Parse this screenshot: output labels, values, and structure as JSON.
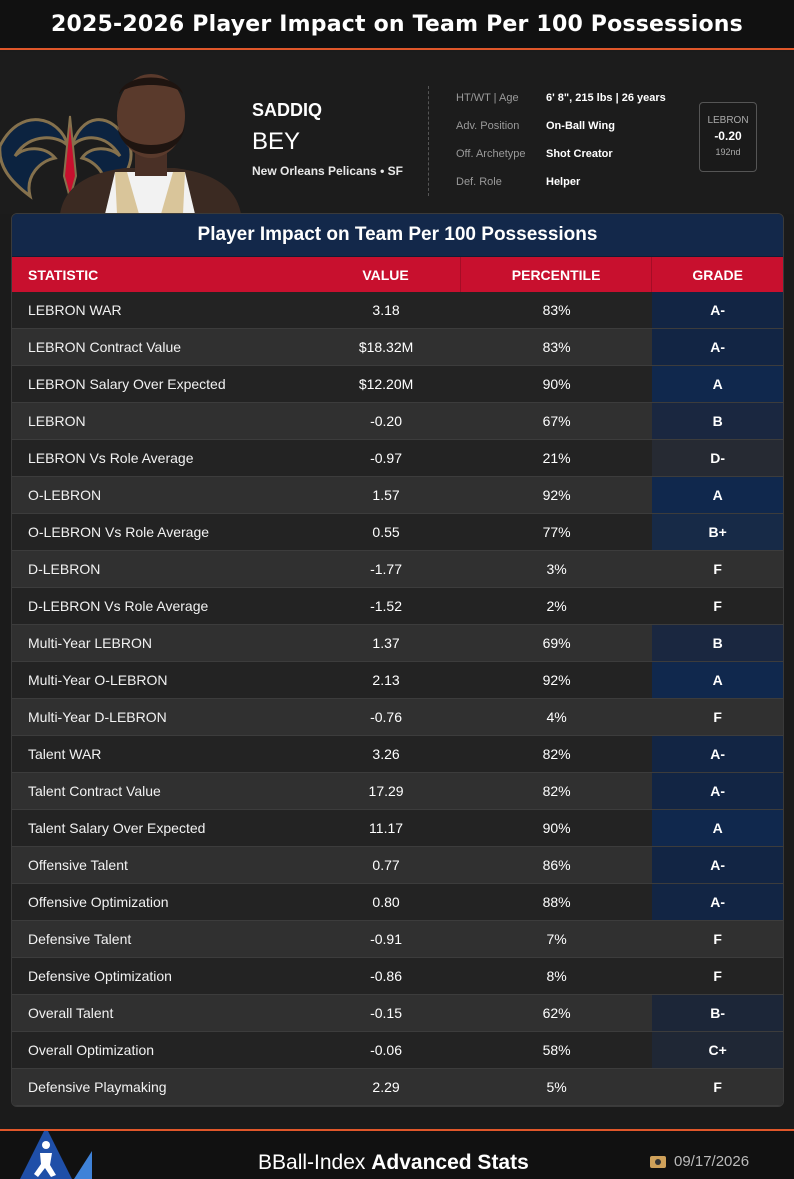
{
  "page_title": "2025-2026 Player Impact on Team Per 100 Possessions",
  "player": {
    "first_name": "SADDIQ",
    "last_name": "BEY",
    "team_position": "New Orleans Pelicans • SF"
  },
  "info": [
    {
      "label": "HT/WT | Age",
      "value": "6' 8\", 215 lbs | 26 years"
    },
    {
      "label": "Adv. Position",
      "value": "On-Ball Wing"
    },
    {
      "label": "Off. Archetype",
      "value": "Shot Creator"
    },
    {
      "label": "Def. Role",
      "value": "Helper"
    }
  ],
  "lebron_box": {
    "label": "LEBRON",
    "value": "-0.20",
    "rank": "192nd"
  },
  "table": {
    "title": "Player Impact on Team Per 100 Possessions",
    "headers": [
      "STATISTIC",
      "VALUE",
      "PERCENTILE",
      "GRADE"
    ],
    "rows": [
      {
        "stat": "LEBRON WAR",
        "value": "3.18",
        "percentile": "83%",
        "grade": "A-",
        "grade_color": "#122544"
      },
      {
        "stat": "LEBRON Contract Value",
        "value": "$18.32M",
        "percentile": "83%",
        "grade": "A-",
        "grade_color": "#122544"
      },
      {
        "stat": "LEBRON Salary Over Expected",
        "value": "$12.20M",
        "percentile": "90%",
        "grade": "A",
        "grade_color": "#10284d"
      },
      {
        "stat": "LEBRON",
        "value": "-0.20",
        "percentile": "67%",
        "grade": "B",
        "grade_color": "#1a2740"
      },
      {
        "stat": "LEBRON Vs Role Average",
        "value": "-0.97",
        "percentile": "21%",
        "grade": "D-",
        "grade_color": "#262a33"
      },
      {
        "stat": "O-LEBRON",
        "value": "1.57",
        "percentile": "92%",
        "grade": "A",
        "grade_color": "#10284d"
      },
      {
        "stat": "O-LEBRON Vs Role Average",
        "value": "0.55",
        "percentile": "77%",
        "grade": "B+",
        "grade_color": "#172a47"
      },
      {
        "stat": "D-LEBRON",
        "value": "-1.77",
        "percentile": "3%",
        "grade": "F",
        "grade_color": ""
      },
      {
        "stat": "D-LEBRON Vs Role Average",
        "value": "-1.52",
        "percentile": "2%",
        "grade": "F",
        "grade_color": ""
      },
      {
        "stat": "Multi-Year LEBRON",
        "value": "1.37",
        "percentile": "69%",
        "grade": "B",
        "grade_color": "#1a2740"
      },
      {
        "stat": "Multi-Year O-LEBRON",
        "value": "2.13",
        "percentile": "92%",
        "grade": "A",
        "grade_color": "#10284d"
      },
      {
        "stat": "Multi-Year D-LEBRON",
        "value": "-0.76",
        "percentile": "4%",
        "grade": "F",
        "grade_color": ""
      },
      {
        "stat": "Talent WAR",
        "value": "3.26",
        "percentile": "82%",
        "grade": "A-",
        "grade_color": "#122544"
      },
      {
        "stat": "Talent Contract Value",
        "value": "17.29",
        "percentile": "82%",
        "grade": "A-",
        "grade_color": "#122544"
      },
      {
        "stat": "Talent Salary Over Expected",
        "value": "11.17",
        "percentile": "90%",
        "grade": "A",
        "grade_color": "#10284d"
      },
      {
        "stat": "Offensive Talent",
        "value": "0.77",
        "percentile": "86%",
        "grade": "A-",
        "grade_color": "#122544"
      },
      {
        "stat": "Offensive Optimization",
        "value": "0.80",
        "percentile": "88%",
        "grade": "A-",
        "grade_color": "#122544"
      },
      {
        "stat": "Defensive Talent",
        "value": "-0.91",
        "percentile": "7%",
        "grade": "F",
        "grade_color": ""
      },
      {
        "stat": "Defensive Optimization",
        "value": "-0.86",
        "percentile": "8%",
        "grade": "F",
        "grade_color": ""
      },
      {
        "stat": "Overall Talent",
        "value": "-0.15",
        "percentile": "62%",
        "grade": "B-",
        "grade_color": "#1c2638"
      },
      {
        "stat": "Overall Optimization",
        "value": "-0.06",
        "percentile": "58%",
        "grade": "C+",
        "grade_color": "#1f2735"
      },
      {
        "stat": "Defensive Playmaking",
        "value": "2.29",
        "percentile": "5%",
        "grade": "F",
        "grade_color": ""
      }
    ]
  },
  "footer": {
    "brand": "BBall-Index",
    "brand_bold": "Advanced Stats",
    "date": "09/17/2026"
  },
  "icons": {
    "team_logo": "pelicans-logo",
    "player_photo": "player-headshot",
    "brand_logo": "bball-index-logo",
    "date_icon": "camera-icon"
  }
}
